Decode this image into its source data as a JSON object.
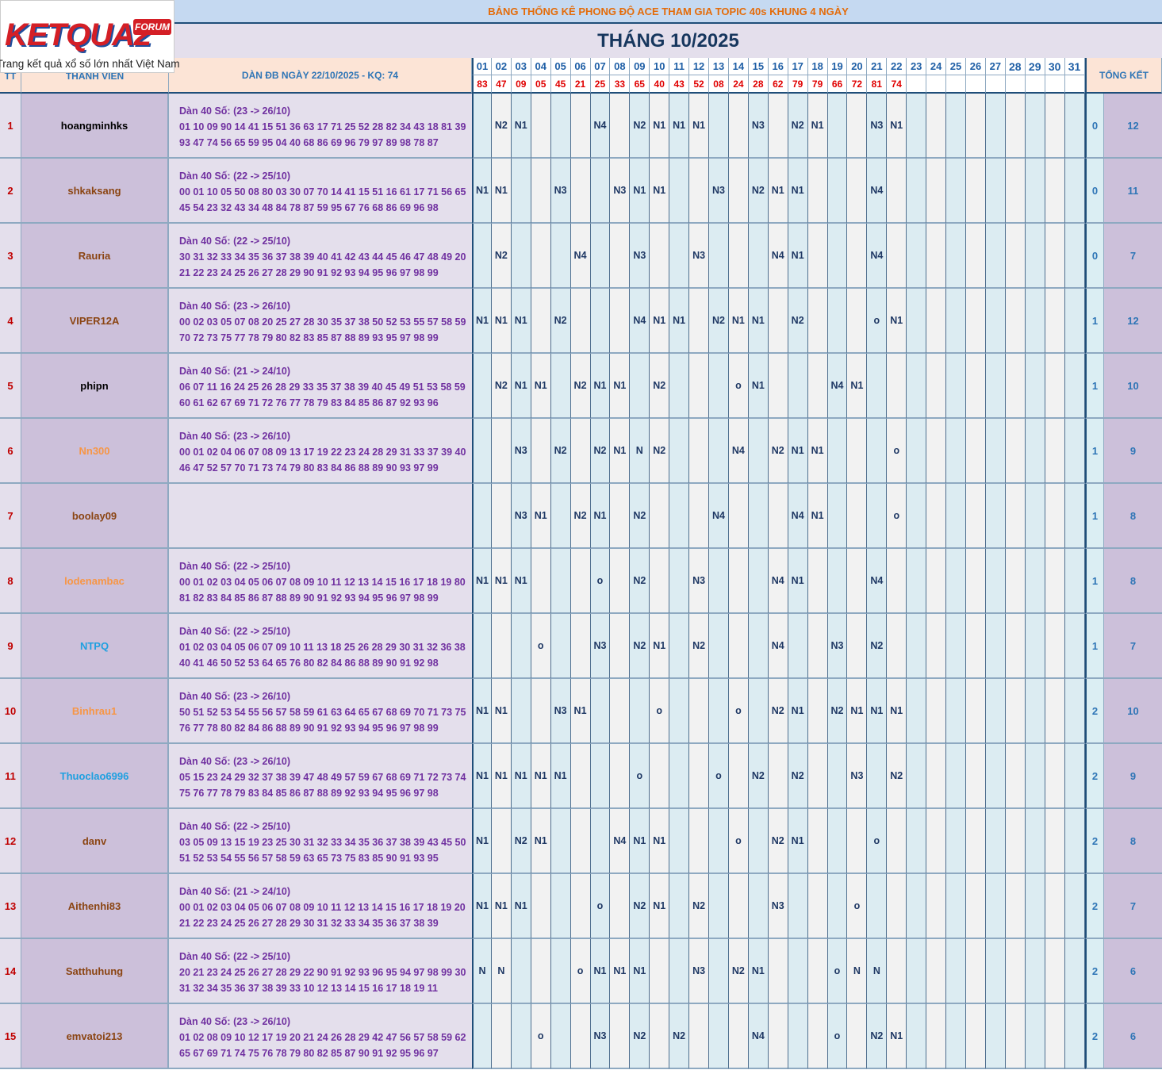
{
  "logo": {
    "brand": "KETQUA2",
    "badge": "FORUM",
    "slogan": "Trang kết quả xổ số lớn nhất Việt Nam"
  },
  "title": "BẢNG THỐNG KÊ PHONG ĐỘ ACE THAM GIA TOPIC 40s KHUNG 4 NGÀY",
  "month_title": "THÁNG 10/2025",
  "header": {
    "tt": "TT",
    "member": "THANH VIEN",
    "dan": "DÀN ĐB NGÀY 22/10/2025 - KQ: 74",
    "total": "TỔNG KẾT",
    "days": [
      "01",
      "02",
      "03",
      "04",
      "05",
      "06",
      "07",
      "08",
      "09",
      "10",
      "11",
      "12",
      "13",
      "14",
      "15",
      "16",
      "17",
      "18",
      "19",
      "20",
      "21",
      "22",
      "23",
      "24",
      "25",
      "26",
      "27",
      "28",
      "29",
      "30",
      "31"
    ],
    "results": [
      "83",
      "47",
      "09",
      "05",
      "45",
      "21",
      "25",
      "33",
      "65",
      "40",
      "43",
      "52",
      "08",
      "24",
      "28",
      "62",
      "79",
      "79",
      "66",
      "72",
      "81",
      "74",
      null,
      null,
      null,
      null,
      null,
      null,
      null,
      null,
      null
    ]
  },
  "rows": [
    {
      "tt": "1",
      "name": "hoangminhks",
      "dan_header": "Dàn 40 Số: (23 -> 26/10)",
      "dan_line1": "01 10 09 90 14 41 15 51 36 63 17 71 25 52 28 82 34 43 18 81 39",
      "dan_line2": "93 47 74 56 65 59 95 04 40 68 86 69 96 79 97 89 98 78 87",
      "cells": [
        null,
        "N2",
        "N1",
        null,
        null,
        null,
        "N4",
        null,
        "N2",
        "N1",
        "N1",
        "N1",
        null,
        null,
        "N3",
        null,
        "N2",
        "N1",
        null,
        null,
        "N3",
        "N1",
        null,
        null,
        null,
        null,
        null,
        null,
        null,
        null,
        null
      ],
      "a": 0,
      "b": 12
    },
    {
      "tt": "2",
      "name": "shkaksang",
      "dan_header": "Dàn 40 Số: (22 -> 25/10)",
      "dan_line1": "00 01 10 05 50 08 80 03 30 07 70 14 41 15 51 16 61 17 71 56 65",
      "dan_line2": "45 54 23 32 43 34 48 84 78 87 59 95 67 76 68 86 69 96 98",
      "cells": [
        "N1",
        "N1",
        null,
        null,
        "N3",
        null,
        null,
        "N3",
        "N1",
        "N1",
        null,
        null,
        "N3",
        null,
        "N2",
        "N1",
        "N1",
        null,
        null,
        null,
        "N4",
        null,
        null,
        null,
        null,
        null,
        null,
        null,
        null,
        null,
        null
      ],
      "a": 0,
      "b": 11
    },
    {
      "tt": "3",
      "name": "Rauria",
      "dan_header": "Dàn 40 Số: (22 -> 25/10)",
      "dan_line1": "30 31 32 33 34 35 36 37 38 39 40 41 42 43 44 45 46 47 48 49 20",
      "dan_line2": "21 22 23 24 25 26 27 28 29 90 91 92 93 94 95 96 97 98 99",
      "cells": [
        null,
        "N2",
        null,
        null,
        null,
        "N4",
        null,
        null,
        "N3",
        null,
        null,
        "N3",
        null,
        null,
        null,
        "N4",
        "N1",
        null,
        null,
        null,
        "N4",
        null,
        null,
        null,
        null,
        null,
        null,
        null,
        null,
        null,
        null
      ],
      "a": 0,
      "b": 7
    },
    {
      "tt": "4",
      "name": "VIPER12A",
      "dan_header": "Dàn 40 Số: (23 -> 26/10)",
      "dan_line1": "00 02 03 05 07 08 20 25 27 28 30 35 37 38 50 52 53 55 57 58 59",
      "dan_line2": "70 72 73 75 77 78 79 80 82 83 85 87 88 89 93 95 97 98 99",
      "cells": [
        "N1",
        "N1",
        "N1",
        null,
        "N2",
        null,
        null,
        null,
        "N4",
        "N1",
        "N1",
        null,
        "N2",
        "N1",
        "N1",
        null,
        "N2",
        null,
        null,
        null,
        "o",
        "N1",
        null,
        null,
        null,
        null,
        null,
        null,
        null,
        null,
        null
      ],
      "a": 1,
      "b": 12
    },
    {
      "tt": "5",
      "name": "phipn",
      "dan_header": "Dàn 40 Số: (21 -> 24/10)",
      "dan_line1": "06 07 11 16 24 25 26 28 29 33 35 37 38 39 40 45 49 51 53 58 59",
      "dan_line2": "60 61 62 67 69 71 72 76 77 78 79 83 84 85 86 87 92 93 96",
      "cells": [
        null,
        "N2",
        "N1",
        "N1",
        null,
        "N2",
        "N1",
        "N1",
        null,
        "N2",
        null,
        null,
        null,
        "o",
        "N1",
        null,
        null,
        null,
        "N4",
        "N1",
        null,
        null,
        null,
        null,
        null,
        null,
        null,
        null,
        null,
        null,
        null
      ],
      "a": 1,
      "b": 10
    },
    {
      "tt": "6",
      "name": "Nn300",
      "dan_header": "Dàn 40 Số: (23 -> 26/10)",
      "dan_line1": "00 01 02 04 06 07 08 09 13 17 19 22 23 24 28 29 31 33 37 39 40",
      "dan_line2": "46 47 52 57 70 71 73 74 79 80 83 84 86 88 89 90 93 97 99",
      "cells": [
        null,
        null,
        "N3",
        null,
        "N2",
        null,
        "N2",
        "N1",
        "N",
        "N2",
        null,
        null,
        null,
        "N4",
        null,
        "N2",
        "N1",
        "N1",
        null,
        null,
        null,
        "o",
        null,
        null,
        null,
        null,
        null,
        null,
        null,
        null,
        null
      ],
      "a": 1,
      "b": 9
    },
    {
      "tt": "7",
      "name": "boolay09",
      "cells": [
        null,
        null,
        "N3",
        "N1",
        null,
        "N2",
        "N1",
        null,
        "N2",
        null,
        null,
        null,
        "N4",
        null,
        null,
        null,
        "N4",
        "N1",
        null,
        null,
        null,
        "o",
        null,
        null,
        null,
        null,
        null,
        null,
        null,
        null,
        null
      ],
      "a": 1,
      "b": 8
    },
    {
      "tt": "8",
      "name": "lodenambac",
      "dan_header": "Dàn 40 Số: (22 -> 25/10)",
      "dan_line1": "00 01 02 03 04 05 06 07 08 09 10 11 12 13 14 15 16 17 18 19 80",
      "dan_line2": "81 82 83 84 85 86 87 88 89 90 91 92 93 94 95 96 97 98 99",
      "cells": [
        "N1",
        "N1",
        "N1",
        null,
        null,
        null,
        "o",
        null,
        "N2",
        null,
        null,
        "N3",
        null,
        null,
        null,
        "N4",
        "N1",
        null,
        null,
        null,
        "N4",
        null,
        null,
        null,
        null,
        null,
        null,
        null,
        null,
        null,
        null
      ],
      "a": 1,
      "b": 8
    },
    {
      "tt": "9",
      "name": "NTPQ",
      "dan_header": "Dàn 40 Số: (22 -> 25/10)",
      "dan_line1": "01 02 03 04 05 06 07 09 10 11 13 18 25 26 28 29 30 31 32 36 38",
      "dan_line2": "40 41 46 50 52 53 64 65 76 80 82 84 86 88 89 90 91 92 98",
      "cells": [
        null,
        null,
        null,
        "o",
        null,
        null,
        "N3",
        null,
        "N2",
        "N1",
        null,
        "N2",
        null,
        null,
        null,
        "N4",
        null,
        null,
        "N3",
        null,
        "N2",
        null,
        null,
        null,
        null,
        null,
        null,
        null,
        null,
        null,
        null
      ],
      "a": 1,
      "b": 7
    },
    {
      "tt": "10",
      "name": "Binhrau1",
      "dan_header": "Dàn 40 Số: (23 -> 26/10)",
      "dan_line1": "50 51 52 53 54 55 56 57 58 59 61 63 64 65 67 68 69 70 71 73 75",
      "dan_line2": "76 77 78 80 82 84 86 88 89 90 91 92 93 94 95 96 97 98 99",
      "cells": [
        "N1",
        "N1",
        null,
        null,
        "N3",
        "N1",
        null,
        null,
        null,
        "o",
        null,
        null,
        null,
        "o",
        null,
        "N2",
        "N1",
        null,
        "N2",
        "N1",
        "N1",
        "N1",
        null,
        null,
        null,
        null,
        null,
        null,
        null,
        null,
        null
      ],
      "a": 2,
      "b": 10
    },
    {
      "tt": "11",
      "name": "Thuoclao6996",
      "dan_header": "Dàn 40 Số: (23 -> 26/10)",
      "dan_line1": "05 15 23 24 29 32 37 38 39 47 48 49 57 59 67 68 69 71 72 73 74",
      "dan_line2": "75 76 77 78 79 83 84 85 86 87 88 89 92 93 94 95 96 97 98",
      "cells": [
        "N1",
        "N1",
        "N1",
        "N1",
        "N1",
        null,
        null,
        null,
        "o",
        null,
        null,
        null,
        "o",
        null,
        "N2",
        null,
        "N2",
        null,
        null,
        "N3",
        null,
        "N2",
        null,
        null,
        null,
        null,
        null,
        null,
        null,
        null,
        null
      ],
      "a": 2,
      "b": 9
    },
    {
      "tt": "12",
      "name": "danv",
      "dan_header": "Dàn 40 Số: (22 -> 25/10)",
      "dan_line1": "03 05 09 13 15 19 23 25 30 31 32 33 34 35 36 37 38 39 43 45 50",
      "dan_line2": "51 52 53 54 55 56 57 58 59 63 65 73 75 83 85 90 91 93 95",
      "cells": [
        "N1",
        null,
        "N2",
        "N1",
        null,
        null,
        null,
        "N4",
        "N1",
        "N1",
        null,
        null,
        null,
        "o",
        null,
        "N2",
        "N1",
        null,
        null,
        null,
        "o",
        null,
        null,
        null,
        null,
        null,
        null,
        null,
        null,
        null,
        null
      ],
      "a": 2,
      "b": 8
    },
    {
      "tt": "13",
      "name": "Aithenhi83",
      "dan_header": "Dàn 40 Số: (21 -> 24/10)",
      "dan_line1": "00 01 02 03 04 05 06 07 08 09 10 11 12 13 14 15 16 17 18 19 20",
      "dan_line2": "21 22 23 24 25 26 27 28 29 30 31 32 33 34 35 36 37 38 39",
      "cells": [
        "N1",
        "N1",
        "N1",
        null,
        null,
        null,
        "o",
        null,
        "N2",
        "N1",
        null,
        "N2",
        null,
        null,
        null,
        "N3",
        null,
        null,
        null,
        "o",
        null,
        null,
        null,
        null,
        null,
        null,
        null,
        null,
        null,
        null,
        null
      ],
      "a": 2,
      "b": 7
    },
    {
      "tt": "14",
      "name": "Satthuhung",
      "dan_header": "Dàn 40 Số: (22 -> 25/10)",
      "dan_line1": "20 21 23 24 25 26 27 28 29 22 90 91 92 93 96 95 94 97 98 99 30",
      "dan_line2": "31 32 34 35 36 37 38 39 33 10 12 13 14 15 16 17 18 19 11",
      "cells": [
        "N",
        "N",
        null,
        null,
        null,
        "o",
        "N1",
        "N1",
        "N1",
        null,
        null,
        "N3",
        null,
        "N2",
        "N1",
        null,
        null,
        null,
        "o",
        "N",
        "N",
        null,
        null,
        null,
        null,
        null,
        null,
        null,
        null,
        null,
        null
      ],
      "a": 2,
      "b": 6
    },
    {
      "tt": "15",
      "name": "emvatoi213",
      "dan_header": "Dàn 40 Số: (23 -> 26/10)",
      "dan_line1": "01 02 08 09 10 12 17 19 20 21 24 26 28 29 42 47 56 57 58 59 62",
      "dan_line2": "65 67 69 71 74 75 76 78 79 80 82 85 87 90 91 92 95 96 97",
      "cells": [
        null,
        null,
        null,
        "o",
        null,
        null,
        "N3",
        null,
        "N2",
        null,
        "N2",
        null,
        null,
        null,
        "N4",
        null,
        null,
        null,
        "o",
        null,
        "N2",
        "N1",
        null,
        null,
        null,
        null,
        null,
        null,
        null,
        null,
        null
      ],
      "a": 2,
      "b": 6
    }
  ]
}
